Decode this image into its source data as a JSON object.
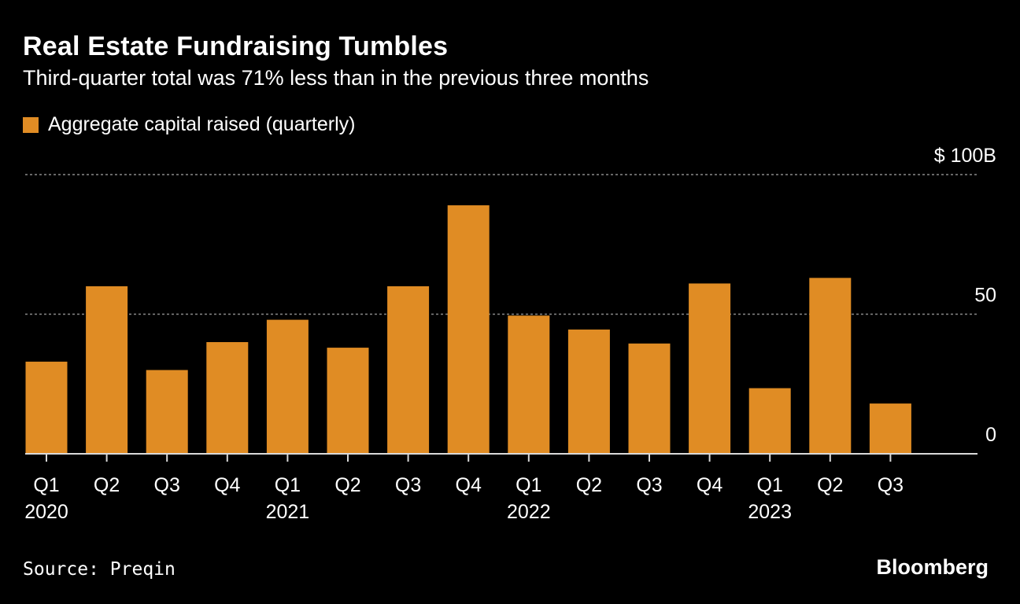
{
  "header": {
    "title": "Real Estate Fundraising Tumbles",
    "subtitle": "Third-quarter total was 71% less than in the previous three months"
  },
  "legend": {
    "label": "Aggregate capital raised (quarterly)"
  },
  "footer": {
    "source": "Source: Preqin",
    "brand": "Bloomberg"
  },
  "colors": {
    "bar": "#e08c24",
    "background": "#000000",
    "text": "#ffffff",
    "gridline": "#8a8a8a"
  },
  "chart_data": {
    "type": "bar",
    "title": "Real Estate Fundraising Tumbles",
    "subtitle": "Third-quarter total was 71% less than in the previous three months",
    "xlabel": "",
    "ylabel": "",
    "units": "B",
    "ylim": [
      0,
      100
    ],
    "y_ticks": [
      {
        "value": 0,
        "label": "0"
      },
      {
        "value": 50,
        "label": "50"
      },
      {
        "value": 100,
        "label": "$ 100B"
      }
    ],
    "grid": true,
    "legend_position": "top-left",
    "categories": [
      {
        "quarter": "Q1",
        "year": "2020"
      },
      {
        "quarter": "Q2",
        "year": ""
      },
      {
        "quarter": "Q3",
        "year": ""
      },
      {
        "quarter": "Q4",
        "year": ""
      },
      {
        "quarter": "Q1",
        "year": "2021"
      },
      {
        "quarter": "Q2",
        "year": ""
      },
      {
        "quarter": "Q3",
        "year": ""
      },
      {
        "quarter": "Q4",
        "year": ""
      },
      {
        "quarter": "Q1",
        "year": "2022"
      },
      {
        "quarter": "Q2",
        "year": ""
      },
      {
        "quarter": "Q3",
        "year": ""
      },
      {
        "quarter": "Q4",
        "year": ""
      },
      {
        "quarter": "Q1",
        "year": "2023"
      },
      {
        "quarter": "Q2",
        "year": ""
      },
      {
        "quarter": "Q3",
        "year": ""
      }
    ],
    "series": [
      {
        "name": "Aggregate capital raised (quarterly)",
        "values": [
          33,
          60,
          30,
          40,
          48,
          38,
          60,
          89,
          49.5,
          44.5,
          39.5,
          61,
          23.5,
          63,
          18
        ]
      }
    ]
  }
}
